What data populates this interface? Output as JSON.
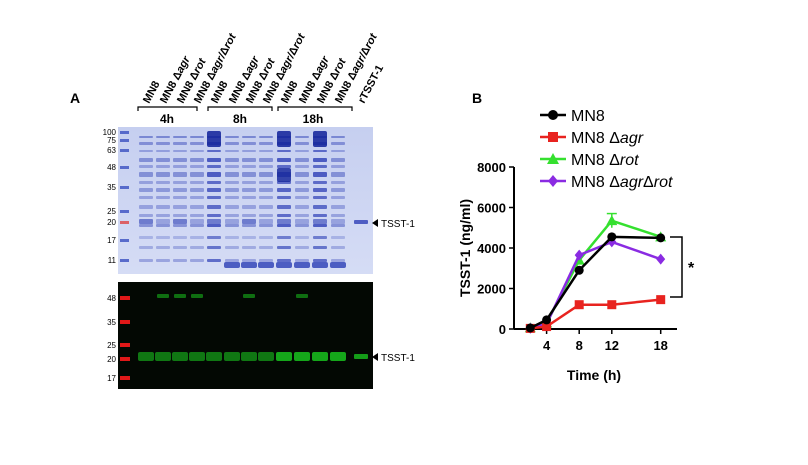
{
  "panels": {
    "a_label": "A",
    "b_label": "B"
  },
  "gel": {
    "lane_labels": [
      "MN8",
      "MN8 Δagr",
      "MN8 Δrot",
      "MN8 Δagr/Δrot",
      "MN8",
      "MN8 Δagr",
      "MN8 Δrot",
      "MN8 Δagr/Δrot",
      "MN8",
      "MN8 Δagr",
      "MN8 Δrot",
      "MN8 Δagr/Δrot",
      "rTSST-1"
    ],
    "time_groups": [
      "4h",
      "8h",
      "18h"
    ],
    "ladder_top": [
      "100",
      "75",
      "63",
      "48",
      "35",
      "25",
      "20",
      "17",
      "11"
    ],
    "ladder_bottom": [
      "48",
      "35",
      "25",
      "20",
      "17"
    ],
    "band_label_top": "TSST-1",
    "band_label_bottom": "TSST-1",
    "colors": {
      "coomassie": "#c9d2ee",
      "stain": "#2d3fb6",
      "blot_bg": "#040904",
      "blot_band": "#19c21e",
      "ladder_red": "#e01818"
    }
  },
  "chart_data": {
    "type": "line",
    "ylabel": "TSST-1 (ng/ml)",
    "xlabel": "Time (h)",
    "x": [
      2,
      4,
      8,
      12,
      18
    ],
    "xticks": [
      4,
      8,
      12,
      18
    ],
    "yticks": [
      0,
      2000,
      4000,
      6000,
      8000
    ],
    "xlim": [
      0,
      20
    ],
    "ylim": [
      0,
      8000
    ],
    "series": [
      {
        "name": "MN8",
        "values": [
          50,
          450,
          2900,
          4550,
          4500
        ],
        "errors": [
          0,
          0,
          0,
          0,
          0
        ],
        "color": "#000000",
        "marker": "circle"
      },
      {
        "name": "MN8 Δagr",
        "values": [
          30,
          120,
          1200,
          1200,
          1450
        ],
        "errors": [
          0,
          0,
          0,
          0,
          0
        ],
        "color": "#e8231f",
        "marker": "square"
      },
      {
        "name": "MN8 Δrot",
        "values": [
          60,
          300,
          3400,
          5350,
          4550
        ],
        "errors": [
          0,
          0,
          0,
          350,
          0
        ],
        "color": "#35e02f",
        "marker": "triangle"
      },
      {
        "name": "MN8 ΔagrΔrot",
        "values": [
          40,
          250,
          3650,
          4300,
          3450
        ],
        "errors": [
          0,
          0,
          0,
          0,
          0
        ],
        "color": "#8a2be2",
        "marker": "diamond"
      }
    ],
    "significance": "*"
  }
}
